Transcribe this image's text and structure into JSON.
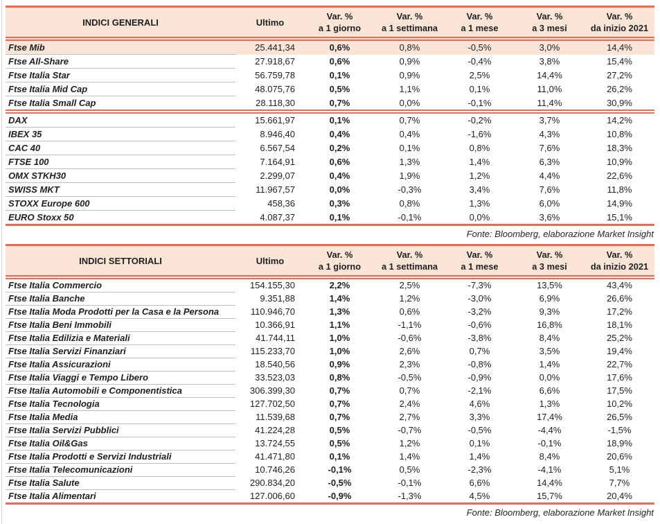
{
  "source_note": "Fonte: Bloomberg, elaborazione Market Insight",
  "colors": {
    "accent": "#ed6a50",
    "header_bg": "#fbe5d6",
    "highlight_bg": "#fbe5d6",
    "row_divider": "#bfbfbf",
    "text": "#1f1f1f"
  },
  "columns": {
    "ultimo": "Ultimo",
    "var_label": "Var. %",
    "periods": [
      "a 1 giorno",
      "a 1 settimana",
      "a 1 mese",
      "a 3 mesi",
      "da inizio 2021"
    ]
  },
  "tables": [
    {
      "title": "INDICI GENERALI",
      "groups": [
        {
          "rows": [
            {
              "label": "Ftse Mib",
              "highlight": true,
              "ultimo": "25.441,34",
              "var": [
                "0,6%",
                "0,8%",
                "-0,5%",
                "3,0%",
                "14,4%"
              ]
            },
            {
              "label": "Ftse All-Share",
              "ultimo": "27.918,67",
              "var": [
                "0,6%",
                "0,9%",
                "-0,4%",
                "3,8%",
                "15,4%"
              ]
            },
            {
              "label": "Ftse Italia Star",
              "ultimo": "56.759,78",
              "var": [
                "0,1%",
                "0,9%",
                "2,5%",
                "14,4%",
                "27,2%"
              ]
            },
            {
              "label": "Ftse Italia Mid Cap",
              "ultimo": "48.075,76",
              "var": [
                "0,5%",
                "1,1%",
                "0,1%",
                "11,0%",
                "26,2%"
              ]
            },
            {
              "label": "Ftse Italia Small Cap",
              "ultimo": "28.118,30",
              "var": [
                "0,7%",
                "0,0%",
                "-0,1%",
                "11,4%",
                "30,9%"
              ]
            }
          ]
        },
        {
          "rows": [
            {
              "label": "DAX",
              "ultimo": "15.661,97",
              "var": [
                "0,1%",
                "0,7%",
                "-0,2%",
                "3,7%",
                "14,2%"
              ]
            },
            {
              "label": "IBEX 35",
              "ultimo": "8.946,40",
              "var": [
                "0,4%",
                "0,4%",
                "-1,6%",
                "4,3%",
                "10,8%"
              ]
            },
            {
              "label": "CAC 40",
              "ultimo": "6.567,54",
              "var": [
                "0,2%",
                "0,1%",
                "0,8%",
                "7,6%",
                "18,3%"
              ]
            },
            {
              "label": "FTSE 100",
              "ultimo": "7.164,91",
              "var": [
                "0,6%",
                "1,3%",
                "1,4%",
                "6,3%",
                "10,9%"
              ]
            },
            {
              "label": "OMX STKH30",
              "ultimo": "2.299,07",
              "var": [
                "0,4%",
                "1,9%",
                "1,2%",
                "4,4%",
                "22,6%"
              ]
            },
            {
              "label": "SWISS MKT",
              "ultimo": "11.967,57",
              "var": [
                "0,0%",
                "-0,3%",
                "3,4%",
                "7,6%",
                "11,8%"
              ]
            },
            {
              "label": "STOXX Europe 600",
              "ultimo": "458,36",
              "var": [
                "0,3%",
                "0,8%",
                "1,3%",
                "6,0%",
                "14,9%"
              ]
            },
            {
              "label": "EURO Stoxx 50",
              "ultimo": "4.087,37",
              "var": [
                "0,1%",
                "-0,1%",
                "0,0%",
                "3,6%",
                "15,1%"
              ]
            }
          ]
        }
      ]
    },
    {
      "title": "INDICI SETTORIALI",
      "groups": [
        {
          "rows": [
            {
              "label": "Ftse Italia Commercio",
              "ultimo": "154.155,30",
              "var": [
                "2,2%",
                "2,5%",
                "-7,3%",
                "13,5%",
                "43,4%"
              ]
            },
            {
              "label": "Ftse Italia Banche",
              "ultimo": "9.351,88",
              "var": [
                "1,4%",
                "1,2%",
                "-3,0%",
                "6,9%",
                "26,6%"
              ]
            },
            {
              "label": "Ftse Italia Moda Prodotti per la Casa e la Persona",
              "ultimo": "110.946,70",
              "var": [
                "1,3%",
                "0,6%",
                "-3,2%",
                "9,3%",
                "17,2%"
              ]
            },
            {
              "label": "Ftse Italia Beni Immobili",
              "ultimo": "10.366,91",
              "var": [
                "1,1%",
                "-1,1%",
                "-0,6%",
                "16,8%",
                "18,1%"
              ]
            },
            {
              "label": "Ftse Italia Edilizia e Materiali",
              "ultimo": "41.744,11",
              "var": [
                "1,0%",
                "-0,6%",
                "-3,8%",
                "8,4%",
                "25,2%"
              ]
            },
            {
              "label": "Ftse Italia Servizi Finanziari",
              "ultimo": "115.233,70",
              "var": [
                "1,0%",
                "2,6%",
                "0,7%",
                "3,5%",
                "19,4%"
              ]
            },
            {
              "label": "Ftse Italia Assicurazioni",
              "ultimo": "18.540,56",
              "var": [
                "0,9%",
                "2,3%",
                "-0,8%",
                "1,4%",
                "22,7%"
              ]
            },
            {
              "label": "Ftse Italia Viaggi e Tempo Libero",
              "ultimo": "33.523,03",
              "var": [
                "0,8%",
                "-0,5%",
                "-0,9%",
                "0,0%",
                "17,6%"
              ]
            },
            {
              "label": "Ftse Italia Automobili e Componentistica",
              "ultimo": "306.399,30",
              "var": [
                "0,7%",
                "0,7%",
                "-2,1%",
                "6,6%",
                "17,5%"
              ]
            },
            {
              "label": "Ftse Italia Tecnologia",
              "ultimo": "127.702,50",
              "var": [
                "0,7%",
                "2,4%",
                "4,6%",
                "1,3%",
                "10,2%"
              ]
            },
            {
              "label": "Ftse Italia Media",
              "ultimo": "11.539,68",
              "var": [
                "0,7%",
                "2,7%",
                "3,3%",
                "17,4%",
                "26,5%"
              ]
            },
            {
              "label": "Ftse Italia Servizi Pubblici",
              "ultimo": "41.224,28",
              "var": [
                "0,5%",
                "-0,7%",
                "-0,5%",
                "-4,4%",
                "-1,5%"
              ]
            },
            {
              "label": "Ftse Italia Oil&Gas",
              "ultimo": "13.724,55",
              "var": [
                "0,5%",
                "1,2%",
                "0,1%",
                "-0,1%",
                "18,9%"
              ]
            },
            {
              "label": "Ftse Italia Prodotti e Servizi Industriali",
              "ultimo": "41.471,80",
              "var": [
                "0,1%",
                "1,4%",
                "1,4%",
                "8,4%",
                "20,6%"
              ]
            },
            {
              "label": "Ftse Italia Telecomunicazioni",
              "ultimo": "10.746,26",
              "var": [
                "-0,1%",
                "0,5%",
                "-2,3%",
                "-4,1%",
                "5,1%"
              ]
            },
            {
              "label": "Ftse Italia Salute",
              "ultimo": "290.834,20",
              "var": [
                "-0,5%",
                "-0,1%",
                "6,6%",
                "14,4%",
                "7,7%"
              ]
            },
            {
              "label": "Ftse Italia Alimentari",
              "ultimo": "127.006,60",
              "var": [
                "-0,9%",
                "-1,3%",
                "4,5%",
                "15,7%",
                "20,4%"
              ]
            }
          ]
        }
      ]
    }
  ]
}
